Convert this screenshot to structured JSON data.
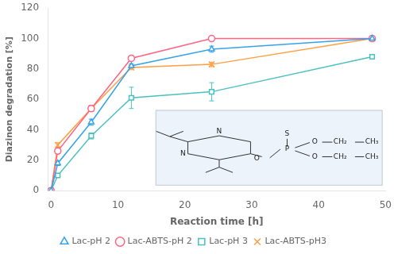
{
  "chart_data": {
    "type": "line",
    "xlabel": "Reaction time [h]",
    "ylabel": "Diazinon degradation [%]",
    "x": [
      0,
      1,
      6,
      12,
      24,
      48
    ],
    "series": [
      {
        "name": "Lac-pH 2",
        "marker": "triangle",
        "values": [
          0,
          18,
          45,
          82,
          93,
          100
        ],
        "yerr": [
          0,
          1.5,
          2,
          1.5,
          2,
          0.5
        ]
      },
      {
        "name": "Lac-ABTS-pH 2",
        "marker": "circle",
        "values": [
          0,
          26,
          54,
          87,
          100,
          100
        ],
        "yerr": [
          0,
          1.5,
          2,
          1.5,
          0.5,
          0.5
        ]
      },
      {
        "name": "Lac-pH 3",
        "marker": "square",
        "values": [
          0,
          10,
          36,
          61,
          65,
          88
        ],
        "yerr": [
          0,
          1,
          2,
          7,
          6,
          1.5
        ]
      },
      {
        "name": "Lac-ABTS-pH3",
        "marker": "x",
        "values": [
          0,
          30,
          54,
          81,
          83,
          100
        ],
        "yerr": [
          0,
          1.5,
          2,
          1.5,
          1.5,
          0.5
        ]
      }
    ],
    "xlim": [
      -0.5,
      50
    ],
    "ylim": [
      0,
      120
    ],
    "xticks": [
      0,
      10,
      20,
      30,
      40,
      50
    ],
    "yticks": [
      0,
      20,
      40,
      60,
      80,
      100,
      120
    ],
    "grid": false,
    "legend": "bottom",
    "annotations": [
      "N",
      "N",
      "O",
      "P",
      "S",
      "O",
      "CH₂",
      "CH₃",
      "O",
      "CH₂",
      "CH₃"
    ]
  }
}
